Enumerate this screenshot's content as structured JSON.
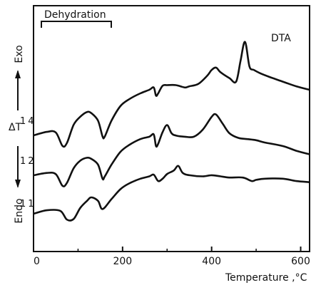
{
  "chart_data": {
    "type": "line",
    "annotation": "Dehydration",
    "curve_label": "DTA",
    "y_axis": {
      "label": "ΔT",
      "exo_label": "Exo",
      "endo_label": "Endo"
    },
    "x_axis": {
      "label": "Temperature ,°C",
      "range": [
        0,
        620
      ],
      "ticks": [
        0,
        200,
        400,
        600
      ],
      "tick_labels": [
        "0",
        "200",
        "400",
        "600"
      ]
    },
    "series": [
      {
        "name": "14",
        "x": [
          0,
          30,
          50,
          65,
          75,
          90,
          105,
          120,
          130,
          145,
          155,
          160,
          175,
          195,
          215,
          240,
          260,
          270,
          275,
          280,
          290,
          300,
          320,
          340,
          350,
          370,
          390,
          400,
          410,
          420,
          440,
          455,
          465,
          475,
          485,
          495,
          510,
          530,
          560,
          590,
          620
        ],
        "y": [
          0,
          6,
          5,
          -18,
          -13,
          18,
          32,
          40,
          38,
          25,
          -2,
          -2,
          25,
          50,
          62,
          72,
          78,
          82,
          68,
          72,
          85,
          86,
          86,
          82,
          84,
          88,
          102,
          112,
          116,
          108,
          98,
          92,
          128,
          160,
          118,
          112,
          106,
          100,
          92,
          84,
          78
        ]
      },
      {
        "name": "12",
        "x": [
          0,
          30,
          50,
          65,
          75,
          90,
          105,
          120,
          130,
          145,
          155,
          160,
          175,
          195,
          215,
          240,
          260,
          270,
          275,
          280,
          290,
          300,
          310,
          320,
          340,
          360,
          380,
          400,
          410,
          425,
          440,
          460,
          480,
          500,
          520,
          560,
          590,
          620
        ],
        "y": [
          0,
          4,
          2,
          -18,
          -13,
          12,
          25,
          30,
          28,
          18,
          -6,
          -2,
          18,
          40,
          52,
          62,
          66,
          70,
          50,
          54,
          74,
          86,
          72,
          68,
          66,
          66,
          78,
          100,
          104,
          88,
          72,
          64,
          62,
          60,
          56,
          50,
          42,
          36
        ]
      },
      {
        "name": "11",
        "x": [
          0,
          30,
          60,
          75,
          90,
          105,
          120,
          130,
          145,
          155,
          175,
          195,
          215,
          240,
          260,
          270,
          280,
          290,
          300,
          315,
          325,
          335,
          350,
          380,
          400,
          420,
          440,
          470,
          490,
          500,
          520,
          560,
          590,
          620
        ],
        "y": [
          0,
          6,
          5,
          -10,
          -9,
          10,
          22,
          28,
          22,
          8,
          25,
          42,
          52,
          60,
          64,
          67,
          56,
          60,
          68,
          74,
          82,
          70,
          66,
          64,
          66,
          64,
          62,
          62,
          56,
          58,
          60,
          60,
          56,
          54
        ]
      }
    ]
  }
}
